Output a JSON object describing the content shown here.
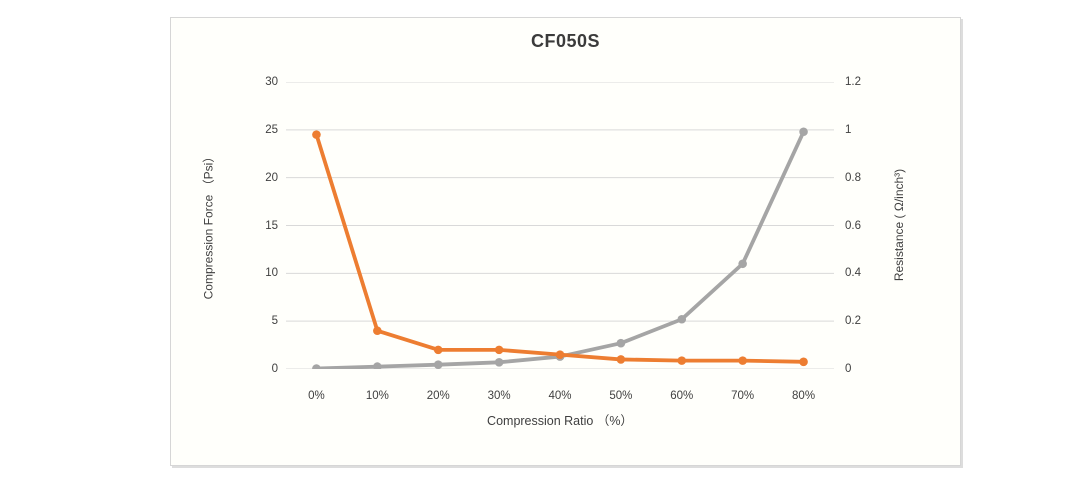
{
  "chart": {
    "title": "CF050S",
    "x_axis": {
      "title": "Compression Ratio （%）"
    },
    "left_axis": {
      "title": "Compression Force （Psi）",
      "ticks": [
        "30",
        "25",
        "20",
        "15",
        "10",
        "5",
        "0"
      ]
    },
    "right_axis": {
      "title": "Resistance ( Ω/inch³)",
      "ticks": [
        "1.2",
        "1",
        "0.8",
        "0.6",
        "0.4",
        "0.2",
        "0"
      ]
    }
  },
  "chart_data": {
    "type": "line",
    "title": "CF050S",
    "categories": [
      "0%",
      "10%",
      "20%",
      "30%",
      "40%",
      "50%",
      "60%",
      "70%",
      "80%"
    ],
    "series": [
      {
        "name": "Compression Force (Psi)",
        "axis": "left",
        "color": "#a5a5a5",
        "values": [
          0.05,
          0.25,
          0.45,
          0.7,
          1.3,
          2.7,
          5.2,
          11,
          24.8
        ]
      },
      {
        "name": "Resistance (Ω/inch³)",
        "axis": "right",
        "color": "#ed7d31",
        "values": [
          0.98,
          0.16,
          0.08,
          0.08,
          0.06,
          0.04,
          0.035,
          0.035,
          0.03
        ]
      }
    ],
    "xlabel": "Compression Ratio （%）",
    "ylabel_left": "Compression Force （Psi）",
    "ylabel_right": "Resistance ( Ω/inch³)",
    "left_ylim": [
      0,
      30
    ],
    "right_ylim": [
      0,
      1.2
    ],
    "gridline_color": "#d9d9d9",
    "grid": true,
    "legend": false
  }
}
